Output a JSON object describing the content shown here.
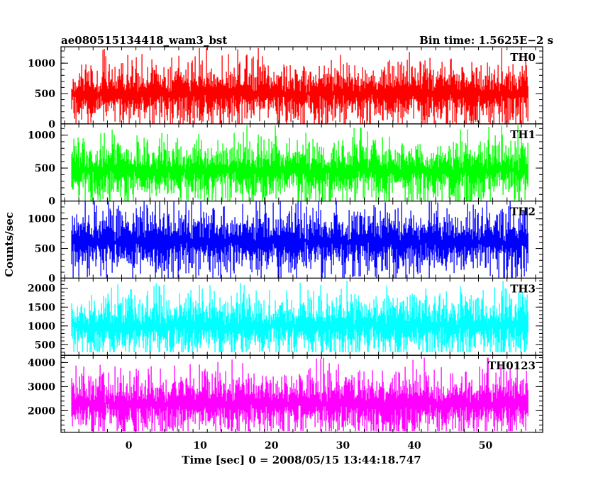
{
  "chart_data": {
    "type": "line",
    "title_left": "ae080515134418_wam3_bst",
    "title_right": "Bin time: 1.5625E−2 s",
    "xlabel": "Time [sec] 0 = 2008/05/15 13:44:18.747",
    "ylabel": "Counts/sec",
    "xlim": [
      -9.5,
      58
    ],
    "x_data_range": [
      -8,
      56
    ],
    "bin_time": 0.015625,
    "x_ticks": [
      "0",
      "10",
      "20",
      "30",
      "40",
      "50"
    ],
    "x_tick_values": [
      0,
      10,
      20,
      30,
      40,
      50
    ],
    "panels": [
      {
        "name": "TH0",
        "color": "#ff0000",
        "ylim": [
          0,
          1270
        ],
        "y_ticks": [
          "0",
          "500",
          "1000"
        ],
        "y_tick_values": [
          0,
          500,
          1000
        ],
        "noise": {
          "low": 0,
          "high": 1250,
          "mean": 500,
          "sd": 160
        }
      },
      {
        "name": "TH1",
        "color": "#00ff00",
        "ylim": [
          0,
          1170
        ],
        "y_ticks": [
          "0",
          "500",
          "1000"
        ],
        "y_tick_values": [
          0,
          500,
          1000
        ],
        "noise": {
          "low": 0,
          "high": 1150,
          "mean": 460,
          "sd": 150
        }
      },
      {
        "name": "TH2",
        "color": "#0000ff",
        "ylim": [
          0,
          1300
        ],
        "y_ticks": [
          "0",
          "500",
          "1000"
        ],
        "y_tick_values": [
          0,
          500,
          1000
        ],
        "noise": {
          "low": 0,
          "high": 1290,
          "mean": 620,
          "sd": 180
        }
      },
      {
        "name": "TH3",
        "color": "#00ffff",
        "ylim": [
          220,
          2270
        ],
        "y_ticks": [
          "500",
          "1000",
          "1500",
          "2000"
        ],
        "y_tick_values": [
          500,
          1000,
          1500,
          2000
        ],
        "noise": {
          "low": 300,
          "high": 2200,
          "mean": 1000,
          "sd": 260
        }
      },
      {
        "name": "TH0123",
        "color": "#ff00ff",
        "ylim": [
          1100,
          4300
        ],
        "y_ticks": [
          "2000",
          "3000",
          "4000"
        ],
        "y_tick_values": [
          2000,
          3000,
          4000
        ],
        "noise": {
          "low": 1150,
          "high": 4200,
          "mean": 2300,
          "sd": 420
        }
      }
    ]
  }
}
